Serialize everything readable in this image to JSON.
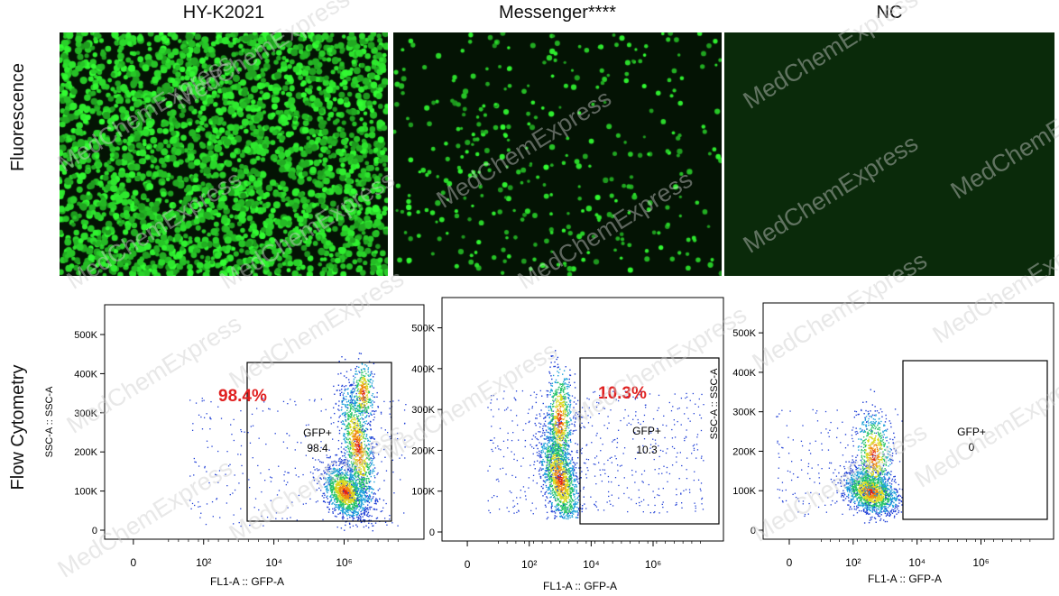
{
  "columns": [
    "HY-K2021",
    "Messenger****",
    "NC"
  ],
  "rows": [
    "Fluorescence",
    "Flow Cytometry"
  ],
  "watermark": "MedChemExpress",
  "colors": {
    "gfp": "#33e533",
    "micro_bg": "#041304",
    "nc_bg": "#0a2a0a",
    "percent": "#e02020",
    "dots": "#1a3fd6"
  },
  "flow_plots": [
    {
      "percent": "98.4%",
      "gate_name": "GFP+",
      "gate_value": "98.4",
      "y_label": "SSC-A :: SSC-A",
      "x_label": "FL1-A :: GFP-A",
      "y_ticks": [
        "0",
        "100K",
        "200K",
        "300K",
        "400K",
        "500K"
      ],
      "x_ticks": [
        "0",
        "10²",
        "10⁴",
        "10⁶"
      ]
    },
    {
      "percent": "10.3%",
      "gate_name": "GFP+",
      "gate_value": "10.3",
      "y_label": "",
      "x_label": "FL1-A :: GFP-A",
      "y_ticks": [
        "0",
        "100K",
        "200K",
        "300K",
        "400K",
        "500K"
      ],
      "x_ticks": [
        "0",
        "10²",
        "10⁴",
        "10⁶"
      ]
    },
    {
      "percent": "",
      "gate_name": "GFP+",
      "gate_value": "0",
      "y_label": "SSC-A :: SSC-A",
      "x_label": "FL1-A :: GFP-A",
      "y_ticks": [
        "0",
        "100K",
        "200K",
        "300K",
        "400K",
        "500K"
      ],
      "x_ticks": [
        "0",
        "10²",
        "10⁴",
        "10⁶"
      ]
    }
  ]
}
